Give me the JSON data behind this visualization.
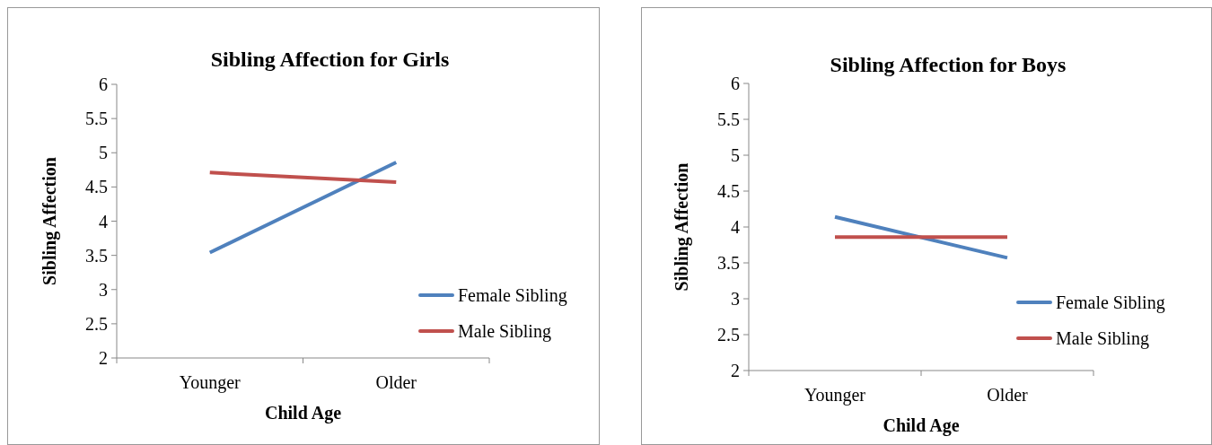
{
  "chart_data": [
    {
      "type": "line",
      "title": "Sibling Affection for Girls",
      "xlabel": "Child Age",
      "ylabel": "Sibling Affection",
      "categories": [
        "Younger",
        "Older"
      ],
      "series": [
        {
          "name": "Female Sibling",
          "color": "#4f81bd",
          "values": [
            3.54,
            4.86
          ]
        },
        {
          "name": "Male Sibling",
          "color": "#c0504d",
          "values": [
            4.71,
            4.57
          ]
        }
      ],
      "ylim": [
        2,
        6
      ],
      "yticks": [
        2,
        2.5,
        3,
        3.5,
        4,
        4.5,
        5,
        5.5,
        6
      ],
      "grid": false,
      "legend": "right",
      "marker": "none",
      "line_style": "solid"
    },
    {
      "type": "line",
      "title": "Sibling Affection for Boys",
      "xlabel": "Child Age",
      "ylabel": "Sibling Affection",
      "categories": [
        "Younger",
        "Older"
      ],
      "series": [
        {
          "name": "Female Sibling",
          "color": "#4f81bd",
          "values": [
            4.14,
            3.57
          ]
        },
        {
          "name": "Male Sibling",
          "color": "#c0504d",
          "values": [
            3.86,
            3.86
          ]
        }
      ],
      "ylim": [
        2,
        6
      ],
      "yticks": [
        2,
        2.5,
        3,
        3.5,
        4,
        4.5,
        5,
        5.5,
        6
      ],
      "grid": false,
      "legend": "right",
      "marker": "none",
      "line_style": "solid"
    }
  ]
}
